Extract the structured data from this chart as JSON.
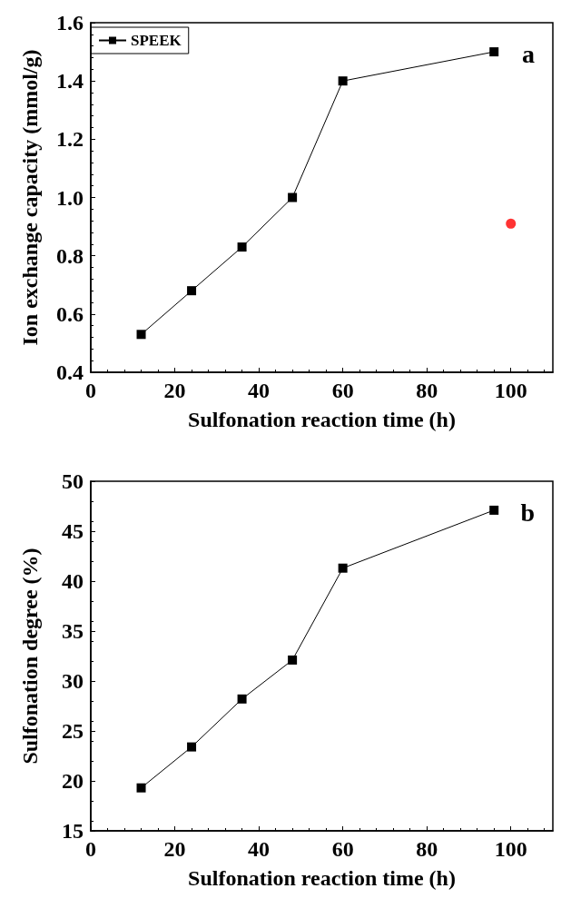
{
  "chart_data": [
    {
      "type": "line",
      "xlabel": "Sulfonation reaction time (h)",
      "ylabel": "Ion exchange capacity (mmol/g)",
      "annotations": [
        "a"
      ],
      "xlim": [
        0,
        110
      ],
      "xticks": [
        0,
        20,
        40,
        60,
        80,
        100
      ],
      "ylim": [
        0.4,
        1.6
      ],
      "yticks": [
        0.4,
        0.6,
        0.8,
        {
          "value": 1,
          "label": "1.0"
        },
        1.2,
        1.4,
        1.6
      ],
      "grid": false,
      "legend": "top left",
      "series": [
        {
          "name": "SPEEK",
          "marker": "square",
          "color": "#000000",
          "x": [
            12,
            24,
            36,
            48,
            60,
            96
          ],
          "values": [
            0.53,
            0.68,
            0.83,
            1.0,
            1.4,
            1.5
          ]
        },
        {
          "type": "scatter",
          "marker": "circle",
          "color": "#ff0000",
          "x": [
            100
          ],
          "values": [
            0.91
          ]
        }
      ]
    },
    {
      "type": "line",
      "xlabel": "Sulfonation reaction time (h)",
      "ylabel": "Sulfonation degree (%)",
      "annotations": [
        "b"
      ],
      "xlim": [
        0,
        110
      ],
      "xticks": [
        0,
        20,
        40,
        60,
        80,
        100
      ],
      "ylim": [
        15,
        50
      ],
      "yticks": [
        15,
        20,
        25,
        30,
        35,
        40,
        45,
        50
      ],
      "grid": false,
      "legend": false,
      "series": [
        {
          "marker": "square",
          "color": "#000000",
          "x": [
            12,
            24,
            36,
            48,
            60,
            96
          ],
          "values": [
            19.3,
            23.4,
            28.2,
            32.1,
            41.3,
            47.1
          ]
        }
      ]
    }
  ]
}
